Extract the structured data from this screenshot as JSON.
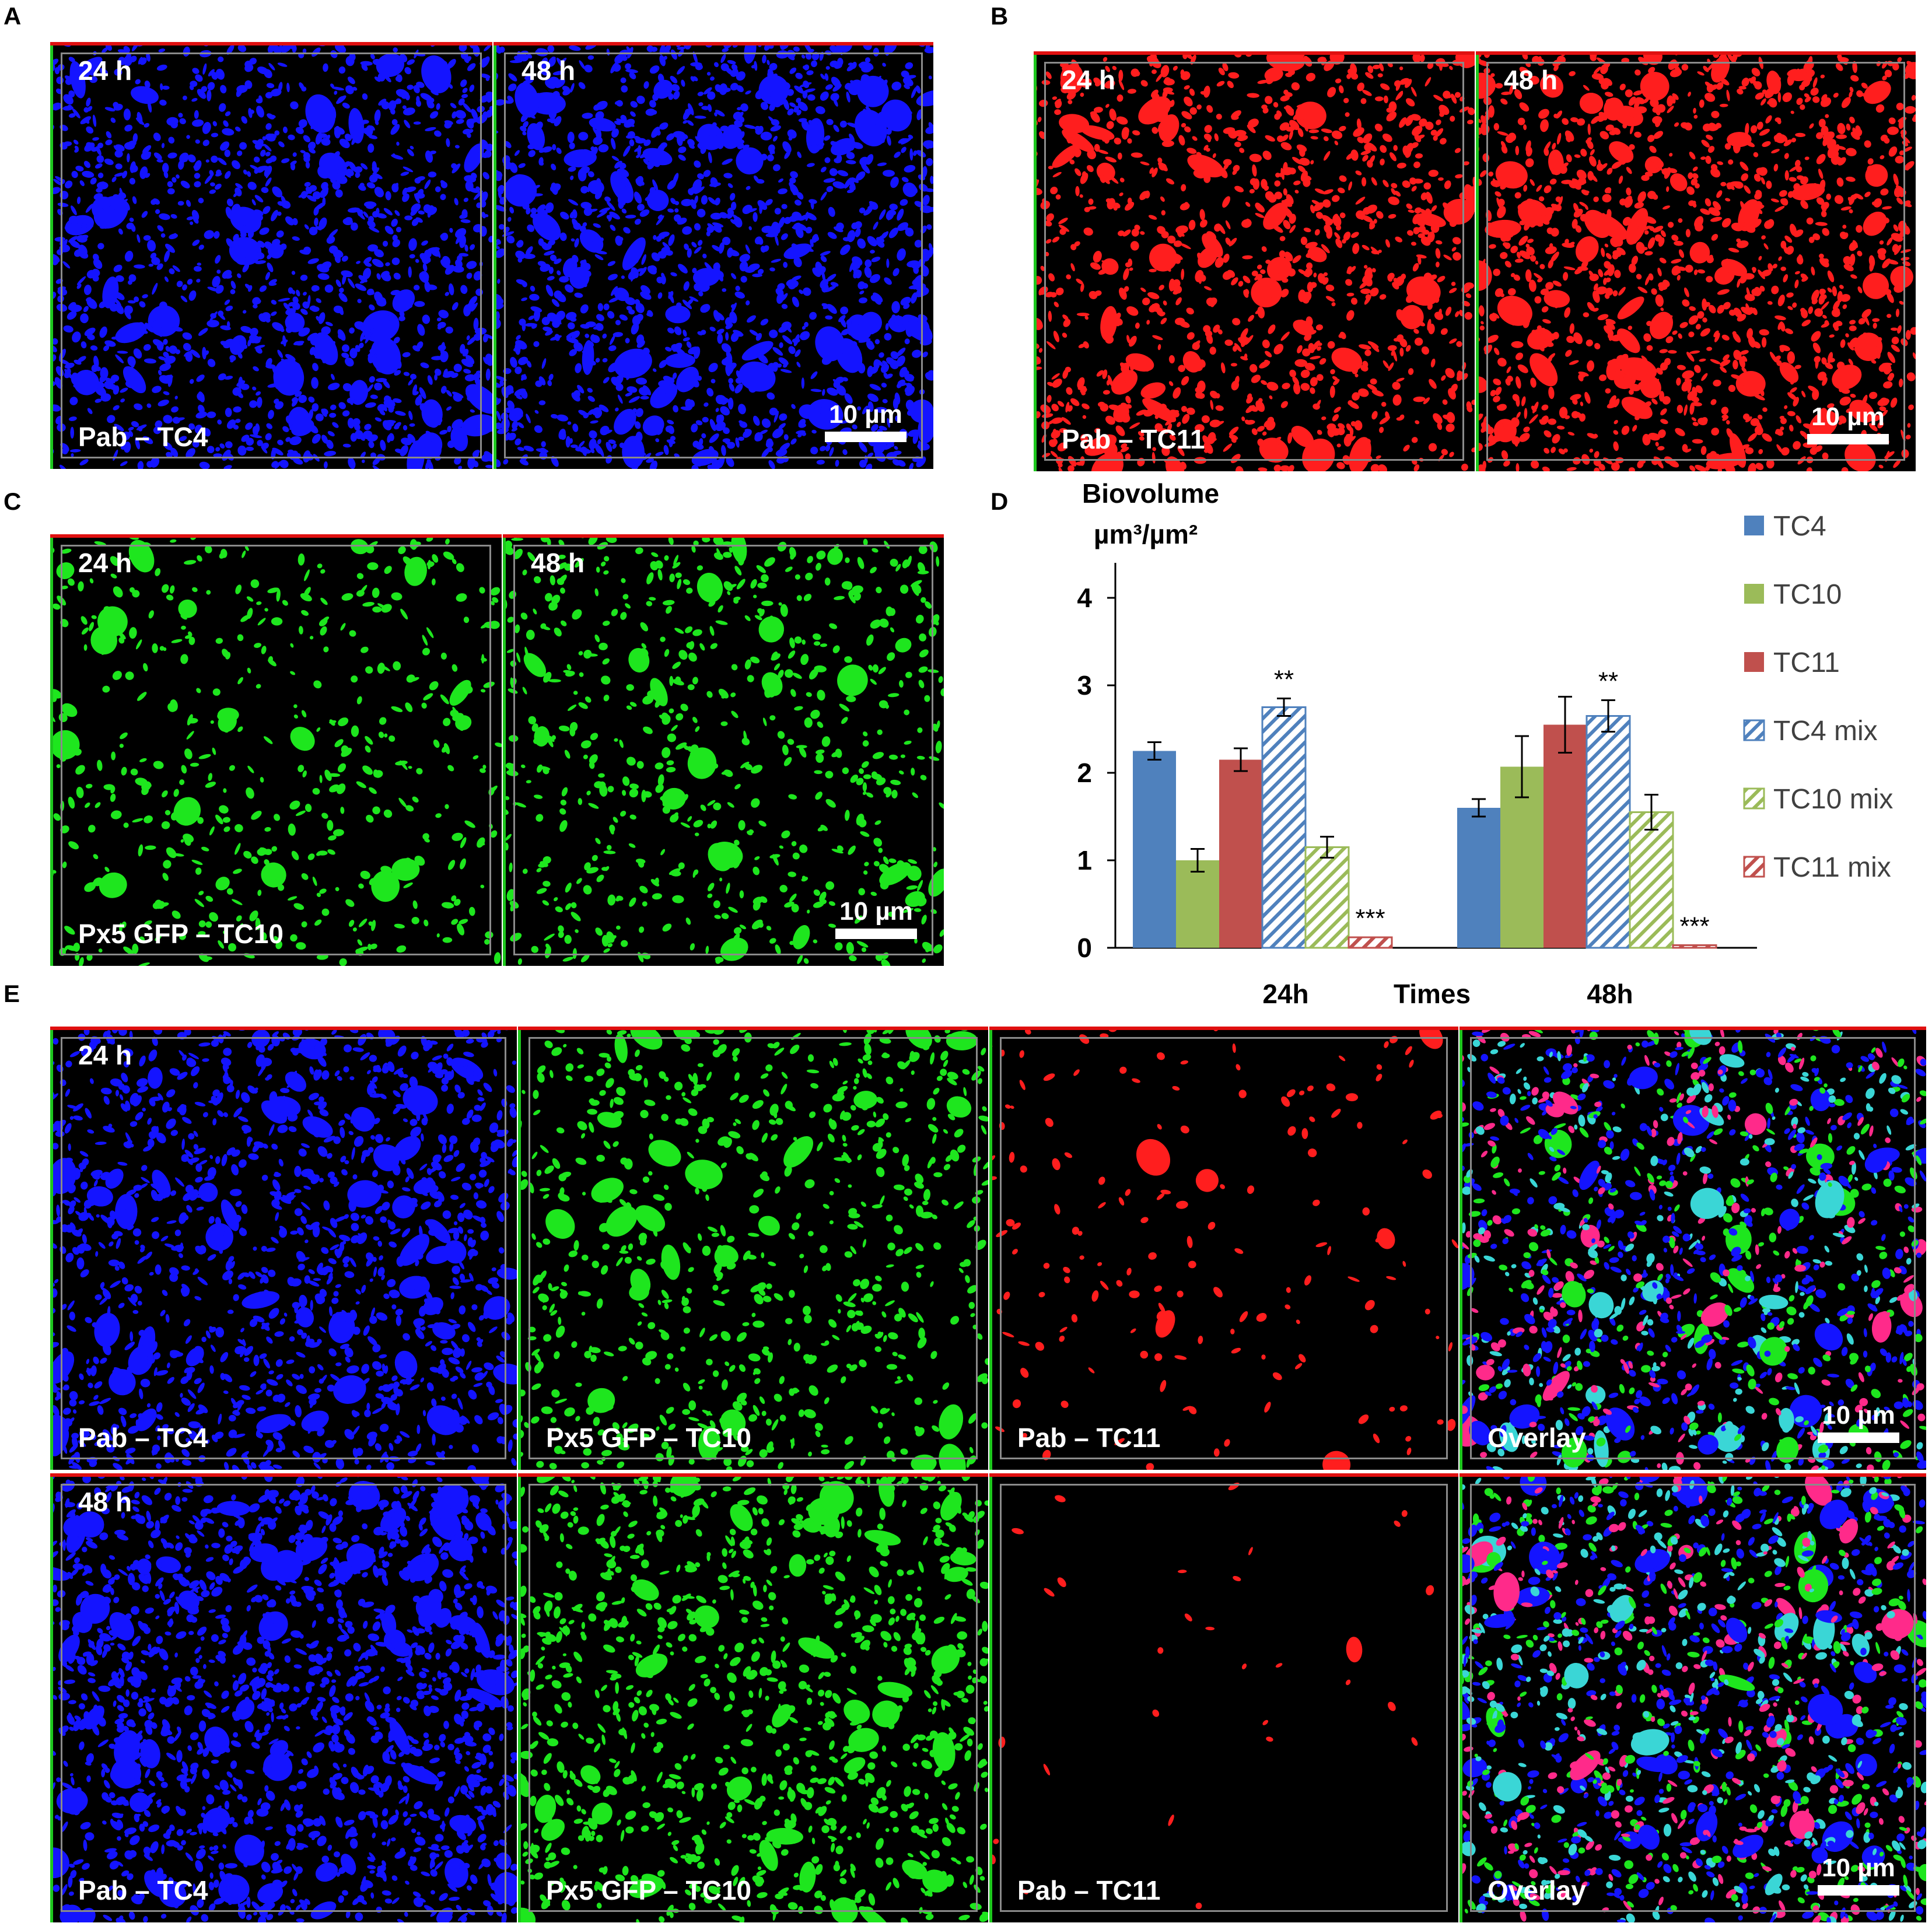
{
  "panel_letters": {
    "a": "A",
    "b": "B",
    "c": "C",
    "d": "D",
    "e": "E"
  },
  "labels": {
    "t24": "24 h",
    "t48": "48 h",
    "scale": "10 µm",
    "pab_tc4": "Pab – TC4",
    "pab_tc11": "Pab – TC11",
    "px5_tc10": "Px5 GFP – TC10",
    "overlay": "Overlay"
  },
  "colors": {
    "tc4": "#4f81bd",
    "tc10": "#9bbb59",
    "tc11": "#c0504d",
    "blue_channel": "#1414ff",
    "red_channel": "#ff1e1e",
    "green_channel": "#1ee61e",
    "overlay_cyan": "#3ad6d6",
    "overlay_magenta": "#ff2a8a"
  },
  "chart_data": {
    "type": "bar",
    "ylabel_line1": "Biovolume",
    "ylabel_line2": "µm³/µm²",
    "xlabel": "Times",
    "categories": [
      "24h",
      "48h"
    ],
    "ylim": [
      0,
      4
    ],
    "yticks": [
      "0",
      "1",
      "2",
      "3",
      "4"
    ],
    "legend_position": "right",
    "series": [
      {
        "name": "TC4",
        "values": [
          2.25,
          1.6
        ],
        "errors": [
          0.1,
          0.1
        ],
        "pattern": "solid",
        "color": "#4f81bd",
        "sig": [
          "",
          ""
        ]
      },
      {
        "name": "TC10",
        "values": [
          1.0,
          2.07
        ],
        "errors": [
          0.13,
          0.35
        ],
        "pattern": "solid",
        "color": "#9bbb59",
        "sig": [
          "",
          ""
        ]
      },
      {
        "name": "TC11",
        "values": [
          2.15,
          2.55
        ],
        "errors": [
          0.13,
          0.32
        ],
        "pattern": "solid",
        "color": "#c0504d",
        "sig": [
          "",
          ""
        ]
      },
      {
        "name": "TC4 mix",
        "values": [
          2.75,
          2.65
        ],
        "errors": [
          0.1,
          0.18
        ],
        "pattern": "hatch",
        "color": "#4f81bd",
        "sig": [
          "**",
          "**"
        ]
      },
      {
        "name": "TC10 mix",
        "values": [
          1.15,
          1.55
        ],
        "errors": [
          0.12,
          0.2
        ],
        "pattern": "hatch",
        "color": "#9bbb59",
        "sig": [
          "",
          ""
        ]
      },
      {
        "name": "TC11 mix",
        "values": [
          0.12,
          0.03
        ],
        "errors": [
          0.0,
          0.0
        ],
        "pattern": "hatch",
        "color": "#c0504d",
        "sig": [
          "***",
          "***"
        ]
      }
    ]
  }
}
